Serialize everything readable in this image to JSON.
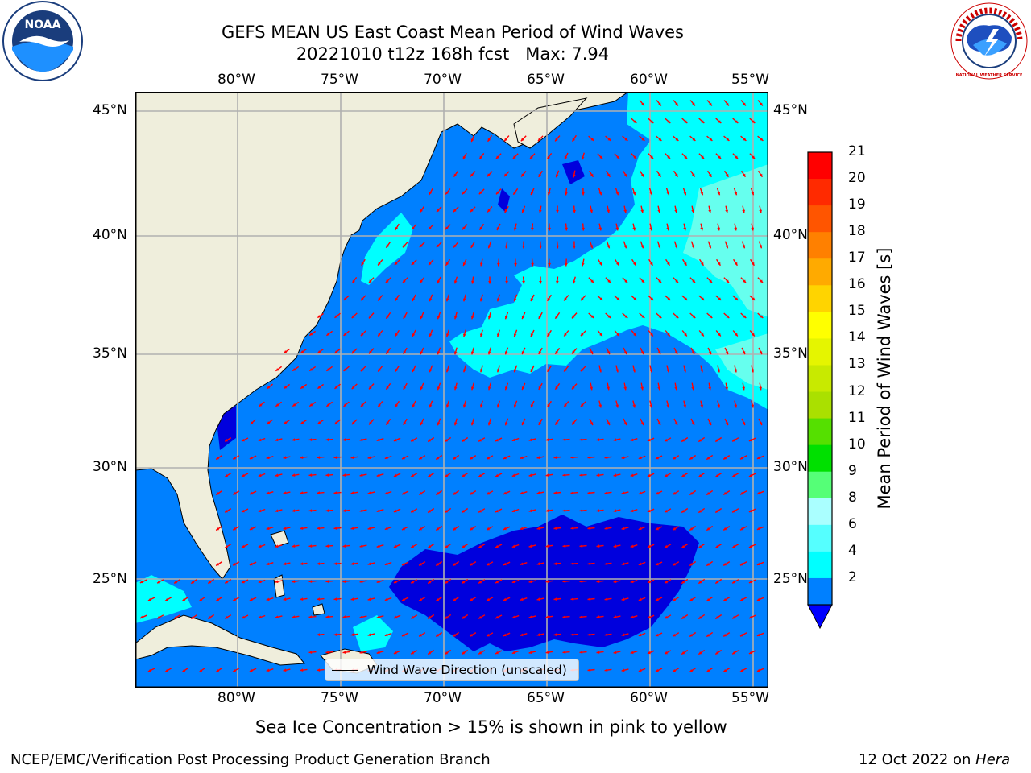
{
  "title": {
    "line1": "GEFS MEAN US East Coast Mean Period of Wind Waves",
    "line2": "20221010 t12z 168h fcst   Max: 7.94"
  },
  "logos": {
    "left": "NOAA",
    "right": "NATIONAL WEATHER SERVICE"
  },
  "map": {
    "lon_labels": [
      "80°W",
      "75°W",
      "70°W",
      "65°W",
      "60°W",
      "55°W"
    ],
    "lat_labels": [
      "45°N",
      "40°N",
      "35°N",
      "30°N",
      "25°N"
    ],
    "legend_text": "Wind Wave Direction (unscaled)",
    "colors": {
      "land": "#efeedc",
      "level_2_4": "#0080ff",
      "level_4_6": "#00ffff",
      "level_6_8": "#4dffff",
      "level_under_2": "#0000dd",
      "arrow": "#ff0000",
      "grid": "#b0b0b0"
    }
  },
  "colorbar": {
    "label": "Mean Period of Wind Waves [s]",
    "ticks": [
      "21",
      "20",
      "19",
      "18",
      "17",
      "16",
      "15",
      "14",
      "13",
      "12",
      "11",
      "10",
      "9",
      "8",
      "6",
      "4",
      "2"
    ],
    "colors": [
      "#ff0000",
      "#ff2a00",
      "#ff5500",
      "#ff8000",
      "#ffaa00",
      "#ffd400",
      "#ffff00",
      "#e5f500",
      "#c8ea00",
      "#aae000",
      "#55e000",
      "#00e000",
      "#55ff77",
      "#aaffff",
      "#55ffff",
      "#00ffff",
      "#0080ff"
    ],
    "under_color": "#0000ff"
  },
  "sea_ice_note": "Sea Ice Concentration > 15% is shown in pink to yellow",
  "footer": {
    "left": "NCEP/EMC/Verification Post Processing Product Generation Branch",
    "right_prefix": "12 Oct 2022 on ",
    "right_machine": "Hera"
  }
}
